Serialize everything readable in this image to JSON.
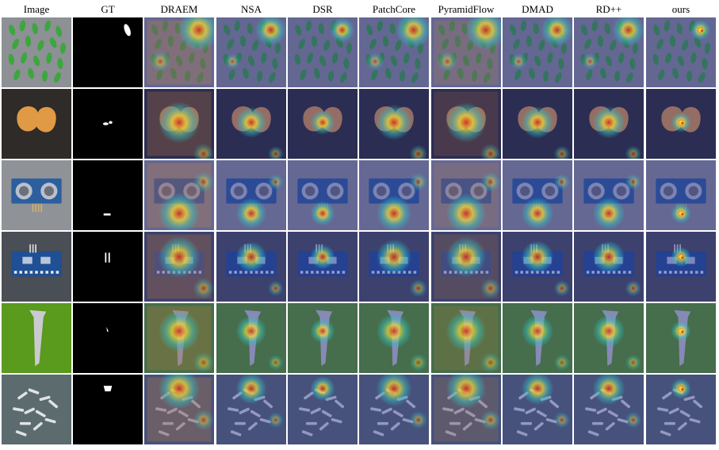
{
  "columns": [
    {
      "label": "Image",
      "kind": "image"
    },
    {
      "label": "GT",
      "kind": "gt"
    },
    {
      "label": "DRAEM",
      "kind": "heat",
      "level": 0.9
    },
    {
      "label": "NSA",
      "kind": "heat",
      "level": 0.55
    },
    {
      "label": "DSR",
      "kind": "heat",
      "level": 0.35
    },
    {
      "label": "PatchCore",
      "kind": "heat",
      "level": 0.7
    },
    {
      "label": "PyramidFlow",
      "kind": "heat",
      "level": 0.85
    },
    {
      "label": "DMAD",
      "kind": "heat",
      "level": 0.6
    },
    {
      "label": "RD++",
      "kind": "heat",
      "level": 0.6
    },
    {
      "label": "ours",
      "kind": "heat",
      "level": 0.2
    }
  ],
  "rows": [
    {
      "object": "seeds",
      "bg": "#8d9095",
      "fg": "#3da63d"
    },
    {
      "object": "cashew",
      "bg": "#2e2b29",
      "fg": "#e09a45"
    },
    {
      "object": "sensor-board",
      "bg": "#8f9297",
      "fg": "#2d5f9e"
    },
    {
      "object": "circuit-board",
      "bg": "#4a4e55",
      "fg": "#1f4f94"
    },
    {
      "object": "spike",
      "bg": "#5a9a1c",
      "fg": "#c9cbd0"
    },
    {
      "object": "pins",
      "bg": "#5c6b6e",
      "fg": "#dfe3e6"
    }
  ],
  "colors": {
    "overlay_blue": "#2b2f8f",
    "heat_cyan": "#2ec4c4",
    "heat_yellow": "#f3e03a",
    "heat_red": "#d8261a"
  }
}
